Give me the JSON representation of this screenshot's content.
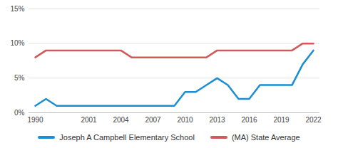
{
  "chart_data": {
    "type": "line",
    "categories": [
      "1990",
      null,
      null,
      null,
      null,
      "2001",
      null,
      null,
      "2004",
      null,
      null,
      "2007",
      null,
      null,
      "2010",
      null,
      null,
      "2013",
      null,
      null,
      "2016",
      null,
      null,
      "2019",
      null,
      null,
      "2022"
    ],
    "series": [
      {
        "name": "Joseph A Campbell Elementary School",
        "color": "#1b8ed3",
        "values": [
          1,
          2,
          1,
          1,
          1,
          1,
          1,
          1,
          1,
          1,
          1,
          1,
          1,
          1,
          3,
          3,
          4,
          5,
          4,
          2,
          2,
          4,
          4,
          4,
          4,
          7,
          9
        ]
      },
      {
        "name": "(MA) State Average",
        "color": "#d05a5a",
        "values": [
          8,
          9,
          9,
          9,
          9,
          9,
          9,
          9,
          9,
          8,
          8,
          8,
          8,
          8,
          8,
          8,
          8,
          9,
          9,
          9,
          9,
          9,
          9,
          9,
          9,
          10,
          10
        ]
      }
    ],
    "ylim": [
      0,
      15
    ],
    "yticks": [
      {
        "value": 0,
        "label": "0%"
      },
      {
        "value": 5,
        "label": "5%"
      },
      {
        "value": 10,
        "label": "10%"
      },
      {
        "value": 15,
        "label": "15%"
      }
    ],
    "grid": true,
    "legend": "bottom"
  }
}
